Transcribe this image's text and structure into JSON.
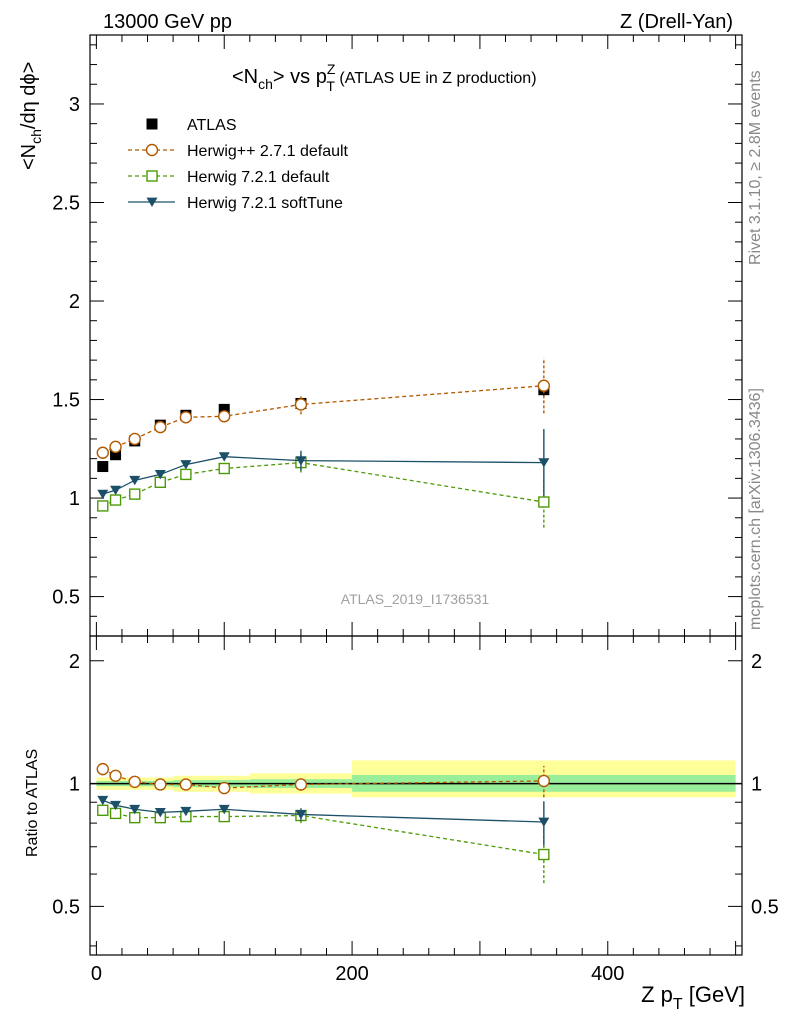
{
  "header": {
    "left": "13000 GeV pp",
    "right": "Z (Drell-Yan)"
  },
  "side_labels": {
    "rivet": "Rivet 3.1.10, ≥ 2.8M events",
    "mcplots": "mcplots.cern.ch [arXiv:1306.3436]"
  },
  "chart_data": {
    "type": "scatter",
    "title_main": "<N",
    "title_sub": "ch",
    "title_mid": "> vs p",
    "title_subT": "T",
    "title_supZ": "Z",
    "title_tail": " (ATLAS UE in Z production)",
    "watermark": "ATLAS_2019_I1736531",
    "ylabel_main": "<N",
    "ylabel_sub": "ch",
    "ylabel_tail": "/dη dϕ>",
    "ratio_ylabel": "Ratio to ATLAS",
    "xlabel_main": "Z p",
    "xlabel_sub": "T",
    "xlabel_tail": " [GeV]",
    "xlim": [
      -5,
      505
    ],
    "ylim": [
      0.3,
      3.35
    ],
    "ratio_ylim": [
      0.38,
      2.3
    ],
    "x_ticks": [
      0,
      200,
      400
    ],
    "y_ticks": [
      0.5,
      1,
      1.5,
      2,
      2.5,
      3
    ],
    "ratio_ticks": [
      0.5,
      1,
      2
    ],
    "bands": [
      {
        "x0": 0,
        "x1": 60,
        "inner": [
          0.985,
          1.015
        ],
        "outer": [
          0.965,
          1.035
        ]
      },
      {
        "x0": 60,
        "x1": 120,
        "inner": [
          0.98,
          1.02
        ],
        "outer": [
          0.955,
          1.045
        ]
      },
      {
        "x0": 120,
        "x1": 200,
        "inner": [
          0.975,
          1.025
        ],
        "outer": [
          0.945,
          1.06
        ]
      },
      {
        "x0": 200,
        "x1": 500,
        "inner": [
          0.955,
          1.05
        ],
        "outer": [
          0.925,
          1.14
        ]
      }
    ],
    "x": [
      5,
      15,
      30,
      50,
      70,
      100,
      160,
      350
    ],
    "series": [
      {
        "name": "ATLAS",
        "color": "#000000",
        "marker": "square",
        "line": "none",
        "values": [
          1.16,
          1.22,
          1.29,
          1.37,
          1.42,
          1.45,
          1.48,
          1.55
        ],
        "errors": [
          0,
          0,
          0,
          0,
          0,
          0,
          0.03,
          0.03
        ]
      },
      {
        "name": "Herwig++ 2.7.1 default",
        "color": "#b25900",
        "marker": "circle",
        "line": "dashed",
        "values": [
          1.23,
          1.26,
          1.3,
          1.36,
          1.41,
          1.415,
          1.475,
          1.57
        ],
        "errors": [
          0,
          0,
          0,
          0,
          0,
          0,
          0.05,
          0.14
        ],
        "ratio": [
          1.085,
          1.045,
          1.01,
          0.995,
          0.995,
          0.975,
          0.995,
          1.015
        ],
        "ratio_errors": [
          0,
          0,
          0,
          0,
          0,
          0,
          0.035,
          0.09
        ]
      },
      {
        "name": "Herwig 7.2.1 default",
        "color": "#4e9a06",
        "marker": "open-square",
        "line": "dashed",
        "values": [
          0.96,
          0.99,
          1.02,
          1.08,
          1.12,
          1.15,
          1.18,
          0.98
        ],
        "errors": [
          0,
          0,
          0,
          0,
          0,
          0,
          0.05,
          0.13
        ],
        "ratio": [
          0.86,
          0.845,
          0.825,
          0.825,
          0.83,
          0.83,
          0.835,
          0.67
        ],
        "ratio_errors": [
          0,
          0,
          0,
          0,
          0,
          0,
          0.035,
          0.1
        ]
      },
      {
        "name": "Herwig 7.2.1 softTune",
        "color": "#1c5069",
        "marker": "triangle-down",
        "line": "solid",
        "values": [
          1.02,
          1.04,
          1.09,
          1.12,
          1.17,
          1.21,
          1.19,
          1.18
        ],
        "errors": [
          0,
          0,
          0,
          0,
          0,
          0,
          0.05,
          0.17
        ],
        "ratio": [
          0.91,
          0.885,
          0.865,
          0.85,
          0.855,
          0.865,
          0.84,
          0.805
        ],
        "ratio_errors": [
          0,
          0,
          0,
          0,
          0,
          0,
          0.03,
          0.1
        ]
      }
    ]
  }
}
